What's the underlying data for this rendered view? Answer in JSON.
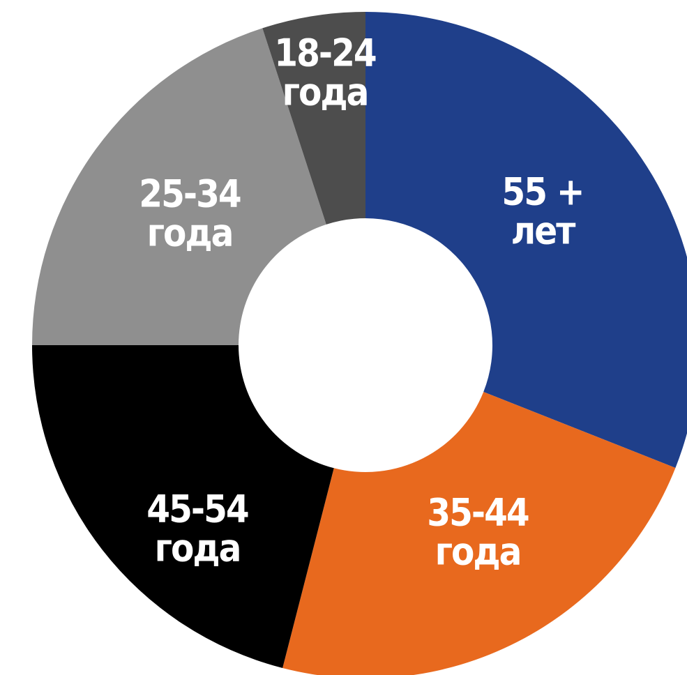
{
  "chart_data": {
    "type": "donut",
    "categories": [
      [
        "55 +",
        "лет"
      ],
      [
        "35-44",
        "года"
      ],
      [
        "45-54",
        "года"
      ],
      [
        "25-34",
        "года"
      ],
      [
        "18-24",
        "года"
      ]
    ],
    "values": [
      31,
      23,
      21,
      20,
      5
    ],
    "colors": [
      "#1f3f8a",
      "#e8691e",
      "#000000",
      "#8f8f8f",
      "#4d4d4d"
    ]
  }
}
